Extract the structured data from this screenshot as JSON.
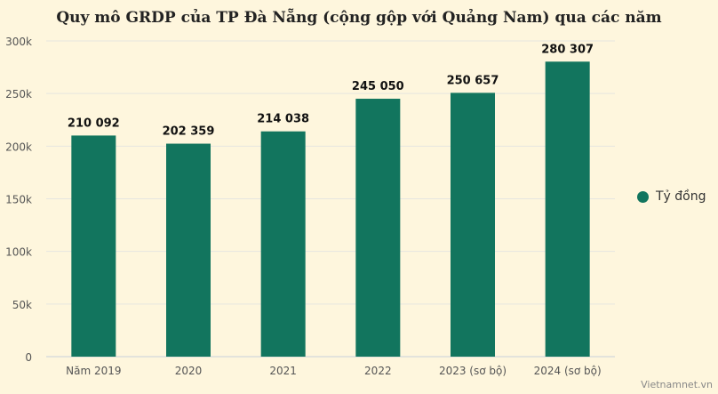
{
  "chart_data": {
    "type": "bar",
    "title": "Quy mô GRDP của TP Đà Nẵng (cộng gộp với Quảng Nam) qua các năm",
    "categories": [
      "Năm 2019",
      "2020",
      "2021",
      "2022",
      "2023 (sơ bộ)",
      "2024 (sơ bộ)"
    ],
    "series": [
      {
        "name": "Tỷ đồng",
        "values": [
          210092,
          202359,
          214038,
          245050,
          250657,
          280307
        ]
      }
    ],
    "data_labels": [
      "210 092",
      "202 359",
      "214 038",
      "245 050",
      "250 657",
      "280 307"
    ],
    "ylim": [
      0,
      300000
    ],
    "yticks": [
      0,
      50000,
      100000,
      150000,
      200000,
      250000,
      300000
    ],
    "ytick_labels": [
      "0",
      "50k",
      "100k",
      "150k",
      "200k",
      "250k",
      "300k"
    ],
    "xlabel": "",
    "ylabel": "",
    "grid": true,
    "legend_position": "right",
    "bar_color": "#12755e",
    "background_color": "#fef6dd"
  },
  "credit": "Vietnamnet.vn"
}
